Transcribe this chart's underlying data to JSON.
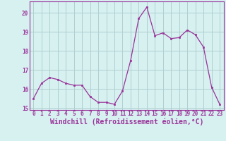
{
  "x": [
    0,
    1,
    2,
    3,
    4,
    5,
    6,
    7,
    8,
    9,
    10,
    11,
    12,
    13,
    14,
    15,
    16,
    17,
    18,
    19,
    20,
    21,
    22,
    23
  ],
  "y": [
    15.5,
    16.3,
    16.6,
    16.5,
    16.3,
    16.2,
    16.2,
    15.6,
    15.3,
    15.3,
    15.2,
    15.9,
    17.5,
    19.7,
    20.3,
    18.8,
    18.95,
    18.65,
    18.7,
    19.1,
    18.85,
    18.2,
    16.1,
    15.2
  ],
  "line_color": "#993399",
  "marker": "s",
  "marker_size": 2.0,
  "bg_color": "#d7f0f0",
  "grid_color": "#b0d0d0",
  "xlabel": "Windchill (Refroidissement éolien,°C)",
  "xlim": [
    -0.5,
    23.5
  ],
  "ylim": [
    14.9,
    20.6
  ],
  "yticks": [
    15,
    16,
    17,
    18,
    19,
    20
  ],
  "xticks": [
    0,
    1,
    2,
    3,
    4,
    5,
    6,
    7,
    8,
    9,
    10,
    11,
    12,
    13,
    14,
    15,
    16,
    17,
    18,
    19,
    20,
    21,
    22,
    23
  ],
  "tick_label_fontsize": 5.5,
  "xlabel_fontsize": 7.0,
  "tick_color": "#993399",
  "spine_color": "#993399",
  "linewidth": 0.9
}
